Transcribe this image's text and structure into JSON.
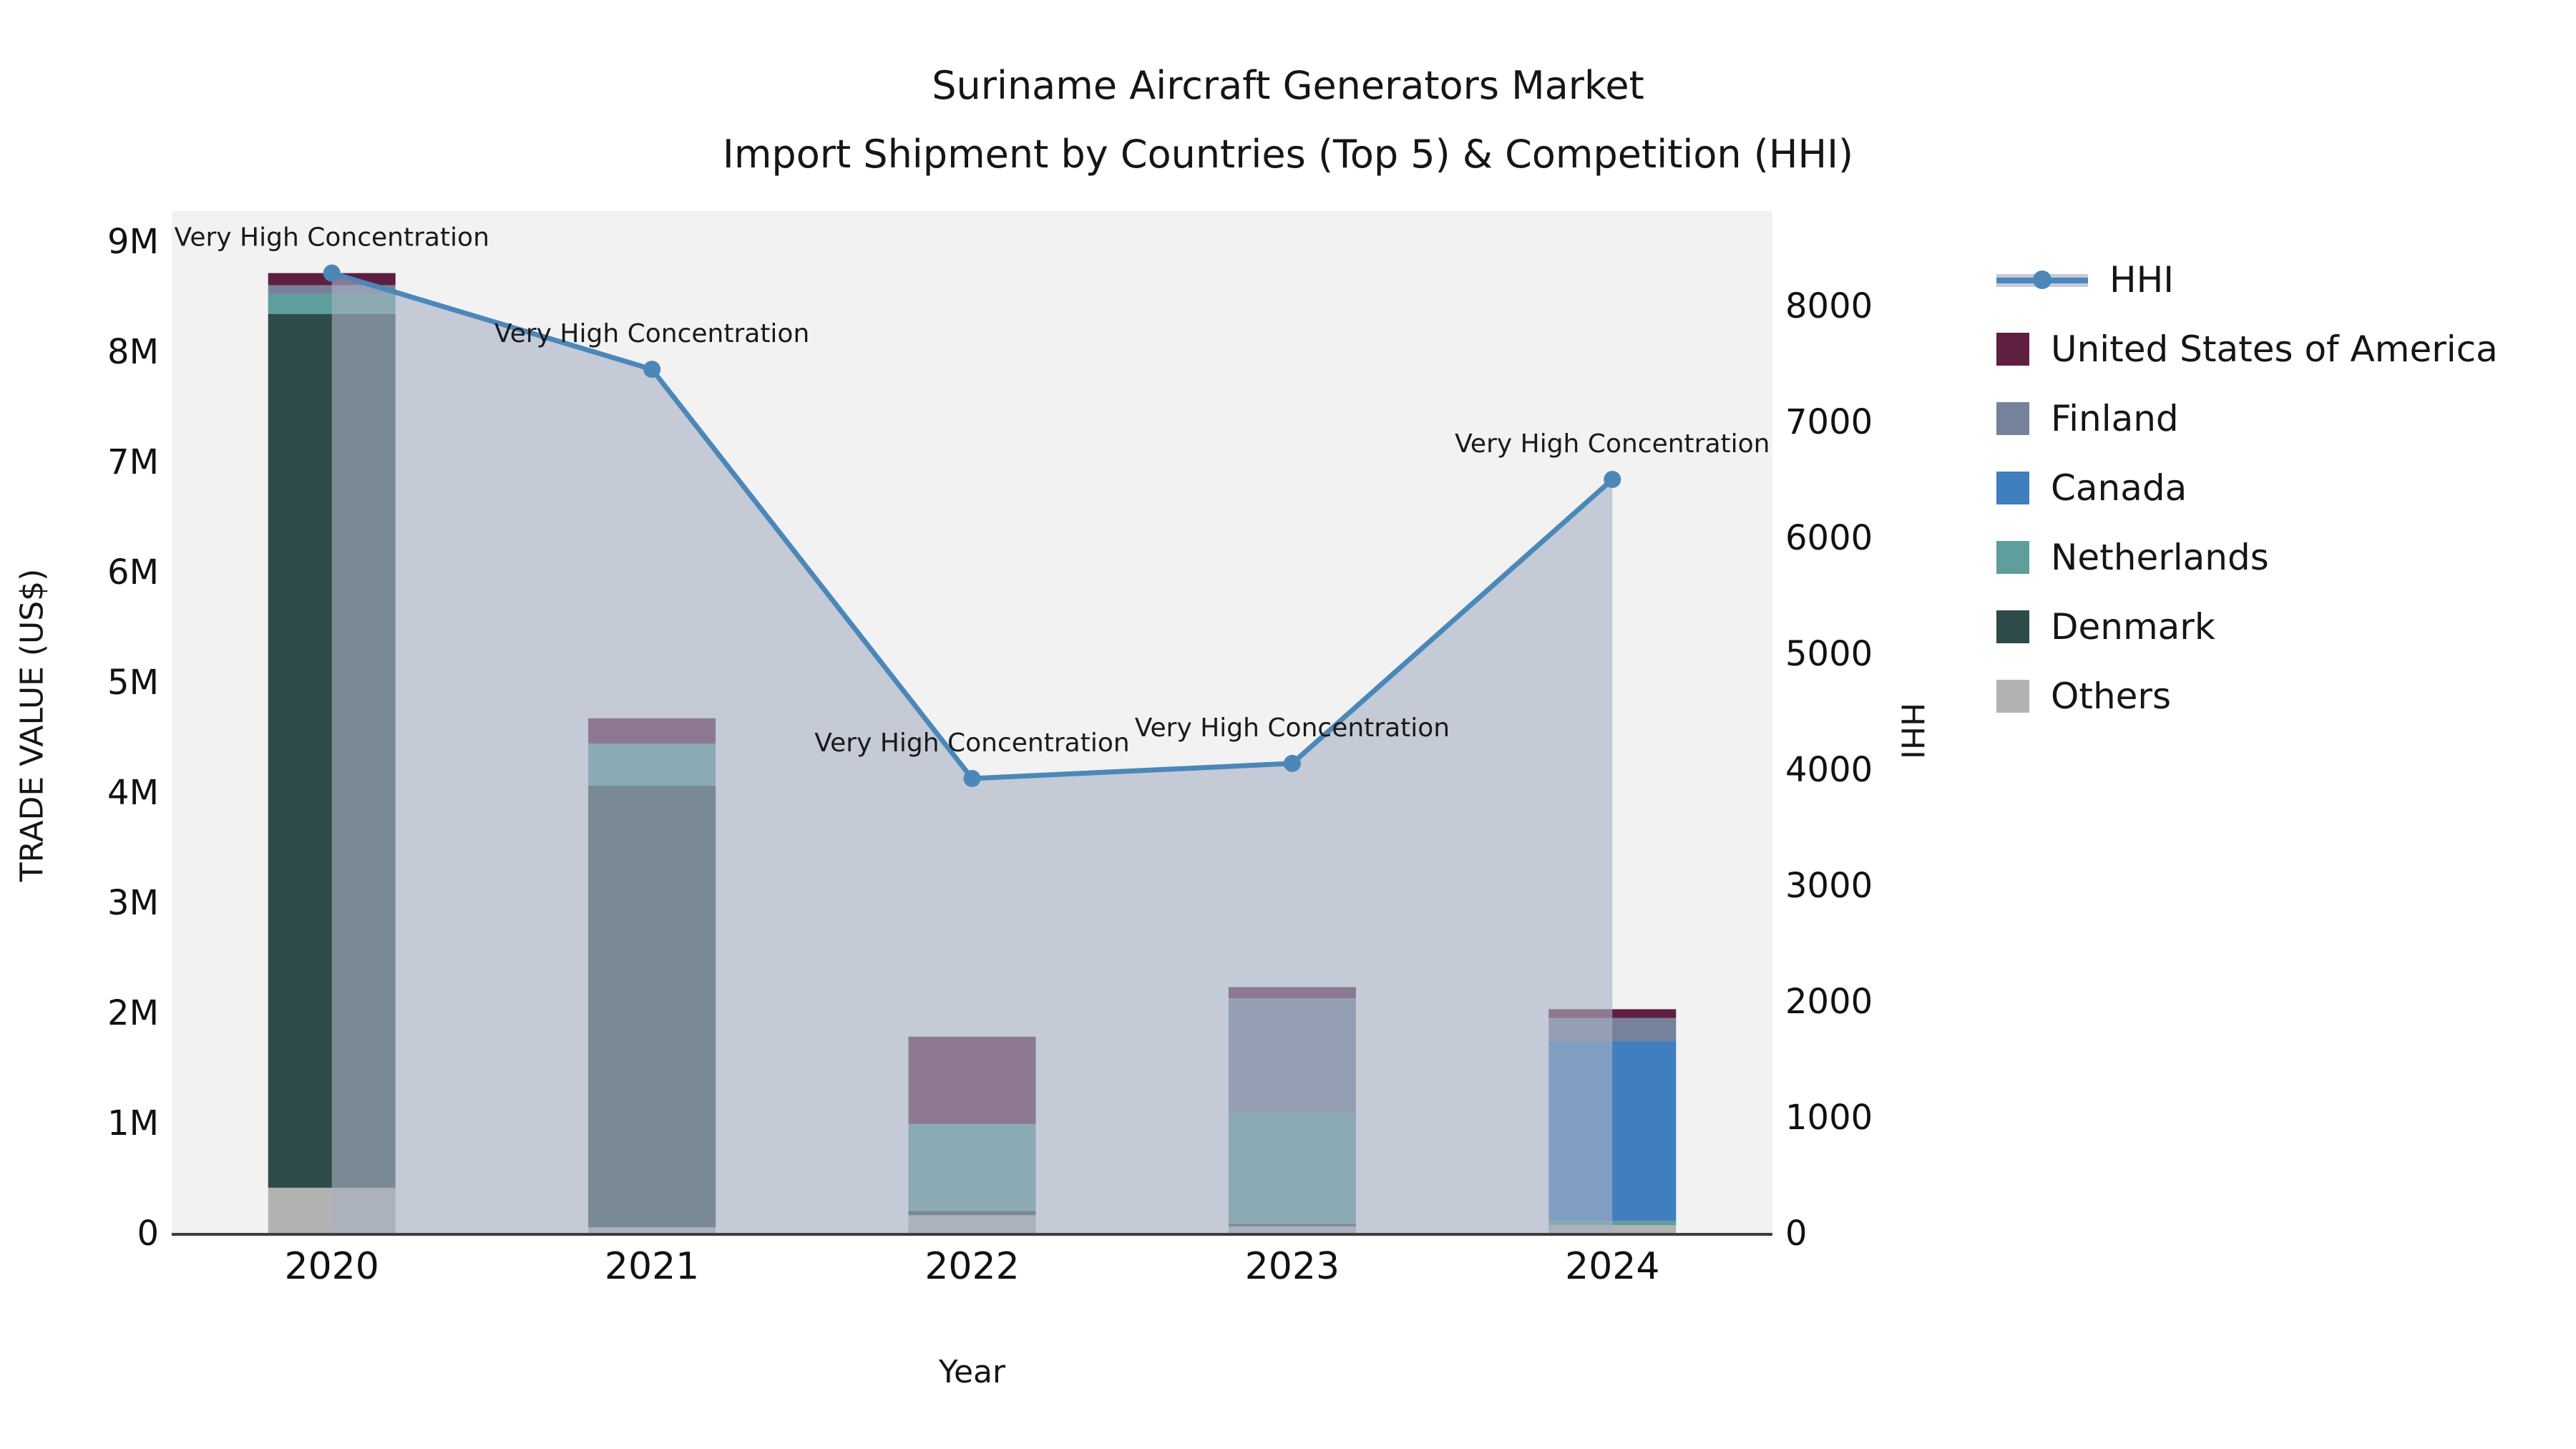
{
  "title": {
    "line1": "Suriname Aircraft Generators Market",
    "line2": "Import Shipment by Countries (Top 5) & Competition (HHI)"
  },
  "axes": {
    "left": {
      "title": "TRADE VALUE (US$)",
      "ticks": [
        "0",
        "1M",
        "2M",
        "3M",
        "4M",
        "5M",
        "6M",
        "7M",
        "8M",
        "9M"
      ],
      "max": 9000000
    },
    "right": {
      "title": "HHI",
      "ticks": [
        "0",
        "1000",
        "2000",
        "3000",
        "4000",
        "5000",
        "6000",
        "7000",
        "8000"
      ],
      "max": 8000
    },
    "x": {
      "title": "Year"
    }
  },
  "legend": {
    "items": [
      {
        "label": "HHI",
        "type": "line",
        "color": "#4c87b9"
      },
      {
        "label": "United States of America",
        "type": "swatch",
        "color": "#5f1f40"
      },
      {
        "label": "Finland",
        "type": "swatch",
        "color": "#76829b"
      },
      {
        "label": "Canada",
        "type": "swatch",
        "color": "#3f7fbe"
      },
      {
        "label": "Netherlands",
        "type": "swatch",
        "color": "#5f9e9c"
      },
      {
        "label": "Denmark",
        "type": "swatch",
        "color": "#2e4a49"
      },
      {
        "label": "Others",
        "type": "swatch",
        "color": "#b2b2b2"
      }
    ]
  },
  "chart_data": {
    "type": "bar",
    "subtype": "stacked-bars-with-line-dual-axis",
    "categories": [
      "2020",
      "2021",
      "2022",
      "2023",
      "2024"
    ],
    "bar_value_unit": "million US$",
    "stack_order_bottom_to_top": [
      "Others",
      "Denmark",
      "Netherlands",
      "Canada",
      "Finland",
      "United States of America"
    ],
    "series": [
      {
        "name": "Others",
        "color": "#b2b2b2",
        "values": [
          0.41,
          0.05,
          0.16,
          0.06,
          0.07
        ]
      },
      {
        "name": "Denmark",
        "color": "#2e4a49",
        "values": [
          7.93,
          4.01,
          0.04,
          0.02,
          0.0
        ]
      },
      {
        "name": "Netherlands",
        "color": "#5f9e9c",
        "values": [
          0.18,
          0.38,
          0.79,
          1.0,
          0.04
        ]
      },
      {
        "name": "Canada",
        "color": "#3f7fbe",
        "values": [
          0.0,
          0.0,
          0.0,
          0.0,
          1.63
        ]
      },
      {
        "name": "Finland",
        "color": "#76829b",
        "values": [
          0.08,
          0.0,
          0.0,
          1.05,
          0.21
        ]
      },
      {
        "name": "United States of America",
        "color": "#5f1f40",
        "values": [
          0.11,
          0.23,
          0.79,
          0.1,
          0.08
        ]
      }
    ],
    "bar_totals_million": [
      8.71,
      4.67,
      1.78,
      2.23,
      2.03
    ],
    "line_series": {
      "name": "HHI",
      "color": "#4c87b9",
      "area_color": "rgba(168,178,196,0.62)",
      "values": [
        8280,
        7450,
        3920,
        4050,
        6500
      ],
      "point_annotations": [
        "Very High Concentration",
        "Very High Concentration",
        "Very High Concentration",
        "Very High Concentration",
        "Very High Concentration"
      ]
    },
    "title": "Suriname Aircraft Generators Market — Import Shipment by Countries (Top 5) & Competition (HHI)",
    "xlabel": "Year",
    "ylabel_left": "TRADE VALUE (US$)",
    "ylabel_right": "HHI",
    "ylim_left": [
      0,
      9000000
    ],
    "ylim_right": [
      0,
      8000
    ],
    "grid": true,
    "plot_background": "#f2f2f3",
    "gridline_color": "#e6e6e9",
    "legend_position": "right-outside"
  }
}
